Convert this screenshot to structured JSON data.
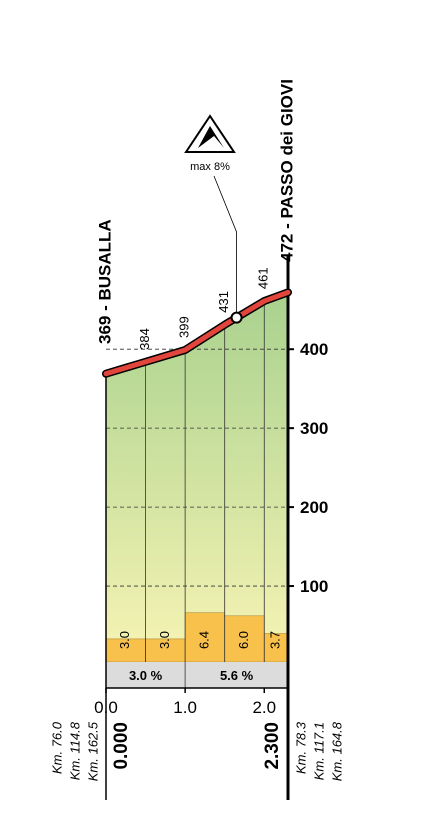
{
  "chart_data": {
    "type": "profile",
    "start_label": "369 - BUSALLA",
    "end_label": "472 - PASSO dei GIOVI",
    "x": [
      0,
      0.5,
      1,
      1.5,
      2,
      2.3
    ],
    "values": [
      369,
      384,
      399,
      431,
      461,
      472
    ],
    "xlim": [
      0,
      2.3
    ],
    "ylim": [
      0,
      475
    ],
    "xticks": [
      {
        "value": 0,
        "label": "0.0"
      },
      {
        "value": 1,
        "label": "1.0"
      },
      {
        "value": 2,
        "label": "2.0"
      }
    ],
    "yticks": [
      100,
      200,
      300,
      400
    ],
    "grid": true,
    "color": "#e2453c",
    "gradients": {
      "edges": [
        0,
        0.5,
        1,
        1.5,
        2,
        2.3
      ],
      "values": [
        3.0,
        3.0,
        6.4,
        6.0,
        3.7
      ],
      "value_labels": [
        "3.0",
        "3.0",
        "6.4",
        "6.0",
        "3.7"
      ],
      "color": "#f7c14c"
    },
    "averages": {
      "edges": [
        0,
        1,
        2.3
      ],
      "values": [
        3.0,
        5.6
      ],
      "value_labels": [
        "3.0 %",
        "5.6 %"
      ]
    },
    "max_gradient": {
      "label": "max 8%",
      "x": 1.65
    },
    "start": {
      "distance": "0.000",
      "km": [
        "Km. 76.0",
        "Km. 114.8",
        "Km. 162.5"
      ]
    },
    "end": {
      "distance": "2.300",
      "km": [
        "Km. 78.3",
        "Km. 117.1",
        "Km. 164.8"
      ]
    }
  }
}
